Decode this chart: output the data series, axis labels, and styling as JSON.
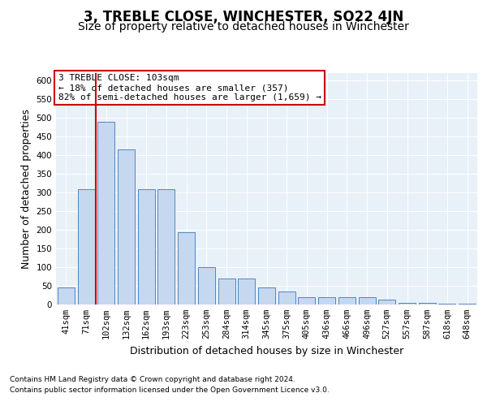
{
  "title": "3, TREBLE CLOSE, WINCHESTER, SO22 4JN",
  "subtitle": "Size of property relative to detached houses in Winchester",
  "xlabel": "Distribution of detached houses by size in Winchester",
  "ylabel": "Number of detached properties",
  "categories": [
    "41sqm",
    "71sqm",
    "102sqm",
    "132sqm",
    "162sqm",
    "193sqm",
    "223sqm",
    "253sqm",
    "284sqm",
    "314sqm",
    "345sqm",
    "375sqm",
    "405sqm",
    "436sqm",
    "466sqm",
    "496sqm",
    "527sqm",
    "557sqm",
    "587sqm",
    "618sqm",
    "648sqm"
  ],
  "values": [
    45,
    310,
    490,
    415,
    310,
    310,
    193,
    100,
    70,
    70,
    45,
    35,
    20,
    20,
    20,
    20,
    12,
    5,
    5,
    2,
    2
  ],
  "bar_color": "#c5d8f0",
  "bar_edge_color": "#4f87c0",
  "marker_index": 2,
  "marker_color": "#cc0000",
  "annotation_text": "3 TREBLE CLOSE: 103sqm\n← 18% of detached houses are smaller (357)\n82% of semi-detached houses are larger (1,659) →",
  "annotation_box_color": "#ffffff",
  "annotation_box_edge": "#cc0000",
  "ylim": [
    0,
    620
  ],
  "yticks": [
    0,
    50,
    100,
    150,
    200,
    250,
    300,
    350,
    400,
    450,
    500,
    550,
    600
  ],
  "bg_color": "#e8f0f8",
  "grid_color": "#ffffff",
  "footer_line1": "Contains HM Land Registry data © Crown copyright and database right 2024.",
  "footer_line2": "Contains public sector information licensed under the Open Government Licence v3.0.",
  "title_fontsize": 12,
  "subtitle_fontsize": 10,
  "axis_label_fontsize": 9,
  "tick_fontsize": 7.5,
  "annotation_fontsize": 8,
  "footer_fontsize": 6.5
}
